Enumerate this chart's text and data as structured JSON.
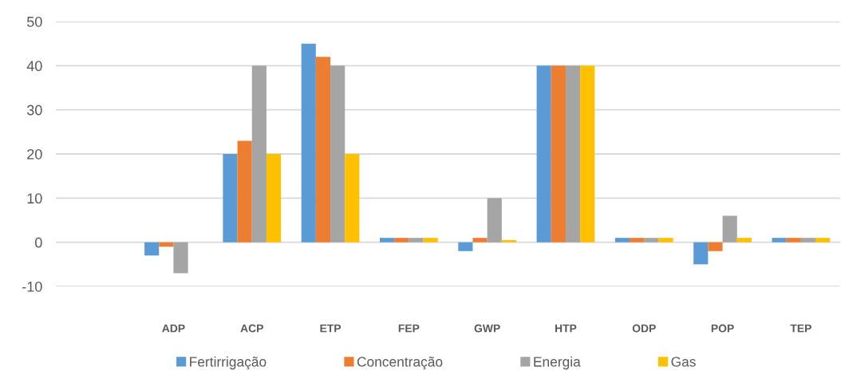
{
  "chart_data": {
    "type": "bar",
    "categories": [
      null,
      "ADP",
      "ACP",
      "ETP",
      "FEP",
      "GWP",
      "HTP",
      "ODP",
      "POP",
      "TEP"
    ],
    "series": [
      {
        "name": "Fertirrigação",
        "color": "#5b9bd5",
        "values": [
          null,
          -3,
          20,
          45,
          1,
          -2,
          40,
          1,
          -5,
          1
        ]
      },
      {
        "name": "Concentração",
        "color": "#ed7d31",
        "values": [
          null,
          -1,
          23,
          42,
          1,
          1,
          40,
          1,
          -2,
          1
        ]
      },
      {
        "name": "Energia",
        "color": "#a5a5a5",
        "values": [
          null,
          -7,
          40,
          40,
          1,
          10,
          40,
          1,
          6,
          1
        ]
      },
      {
        "name": "Gas",
        "color": "#ffc000",
        "values": [
          null,
          0,
          20,
          20,
          1,
          0.5,
          40,
          1,
          1,
          1
        ]
      }
    ],
    "ylim": [
      -10,
      50
    ],
    "yticks": [
      -10,
      0,
      10,
      20,
      30,
      40,
      50
    ],
    "grid": "y",
    "legend": "bottom"
  }
}
